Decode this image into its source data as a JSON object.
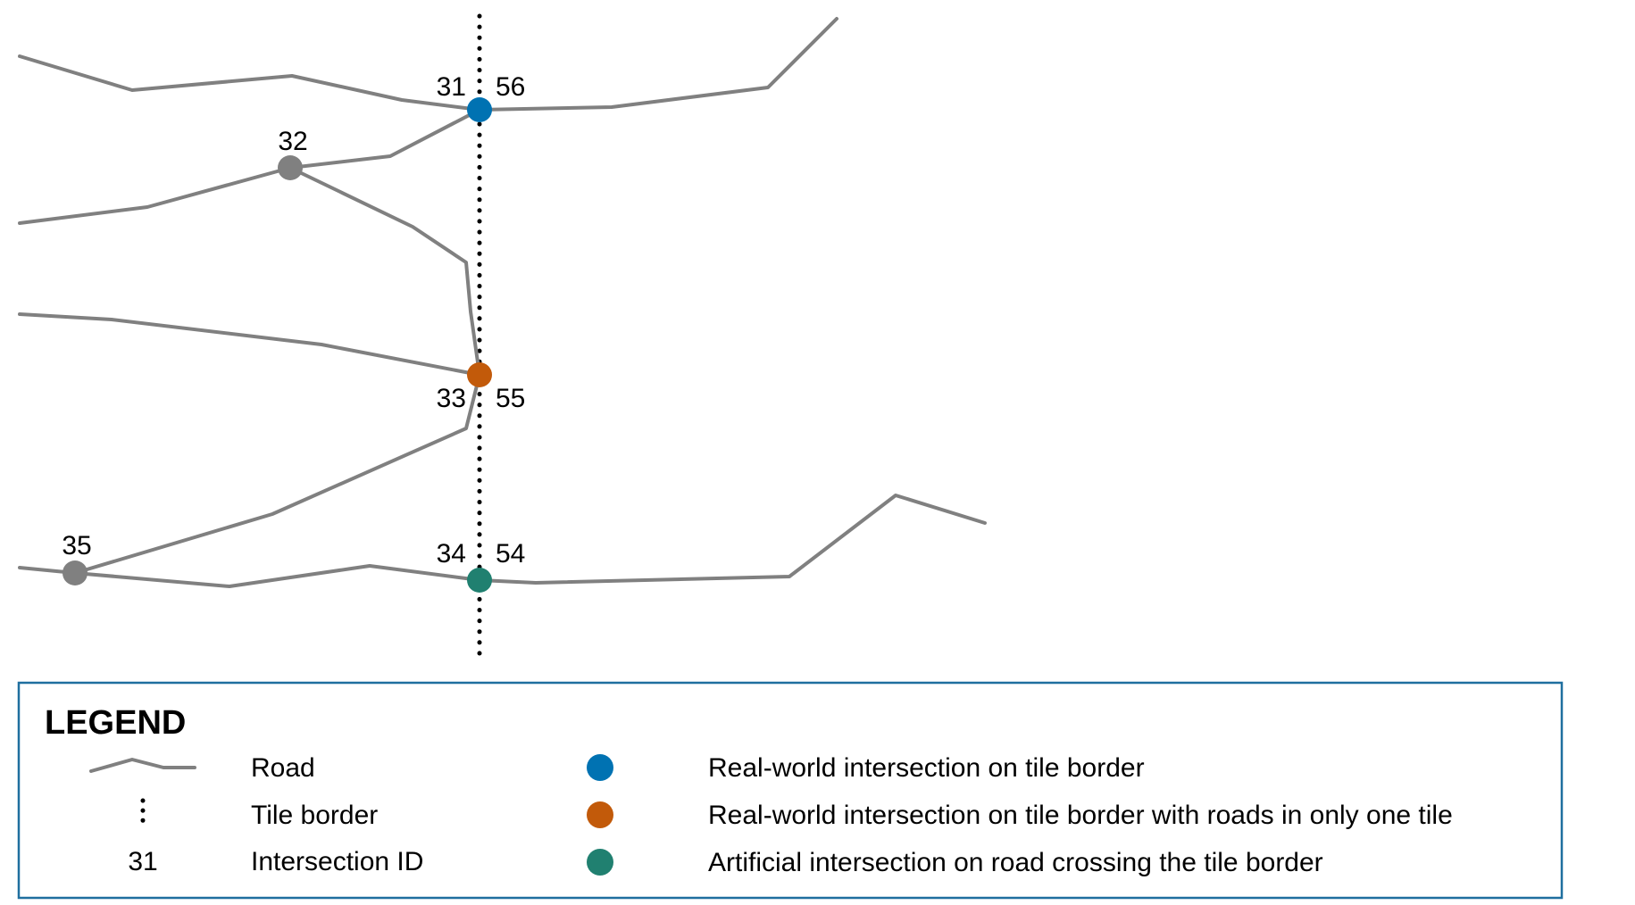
{
  "colors": {
    "road": "#808080",
    "border": "#000000",
    "intersection_plain": "#808080",
    "real_world_border": "#0072B2",
    "real_world_one_tile": "#C25A0A",
    "artificial": "#208070",
    "legend_frame": "#1F6F9F"
  },
  "diagram": {
    "intersections": [
      {
        "id": "blue-node",
        "kind": "real_world_border",
        "labels": [
          "31",
          "56"
        ]
      },
      {
        "id": "node-32",
        "kind": "plain",
        "labels": [
          "32"
        ]
      },
      {
        "id": "orange-node",
        "kind": "real_world_one_tile",
        "labels": [
          "33",
          "55"
        ]
      },
      {
        "id": "green-node",
        "kind": "artificial",
        "labels": [
          "34",
          "54"
        ]
      },
      {
        "id": "node-35",
        "kind": "plain",
        "labels": [
          "35"
        ]
      }
    ]
  },
  "legend": {
    "title": "LEGEND",
    "road_label": "Road",
    "tile_border_label": "Tile border",
    "id_sample": "31",
    "id_label": "Intersection ID",
    "blue_label": "Real-world intersection on tile border",
    "orange_label": "Real-world intersection on tile border with roads in only one tile",
    "green_label": "Artificial intersection on road crossing the tile border"
  }
}
